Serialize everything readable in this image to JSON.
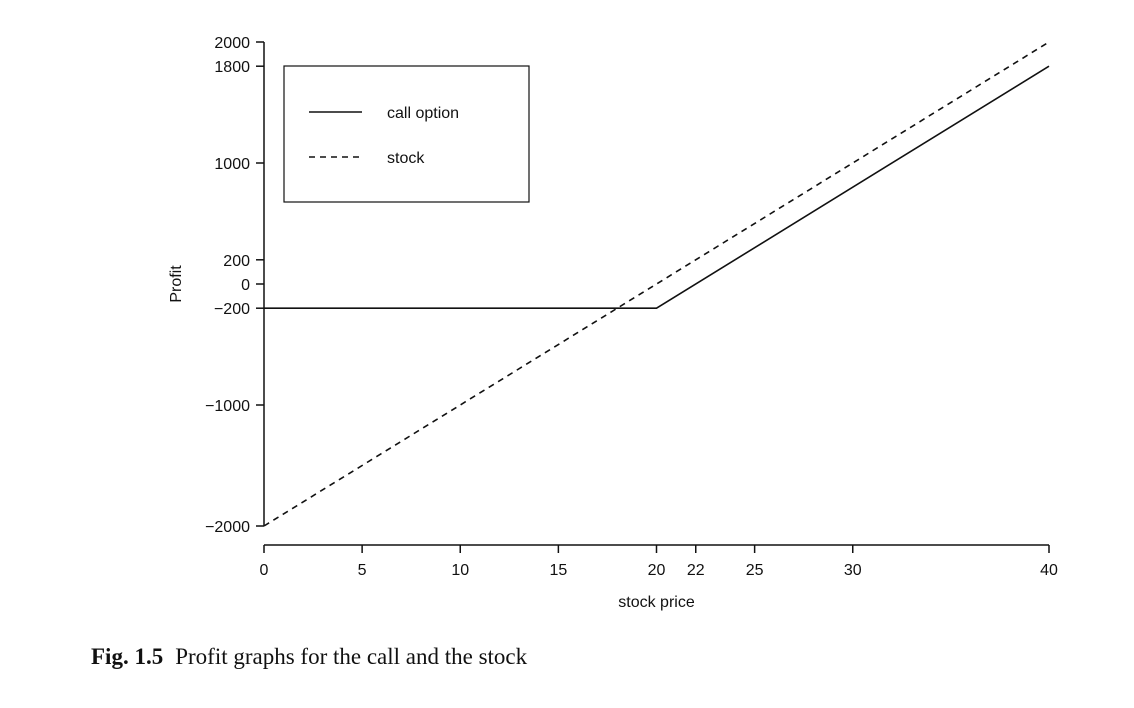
{
  "chart_data": {
    "type": "line",
    "xlabel": "stock price",
    "ylabel": "Profit",
    "xlim": [
      0,
      40
    ],
    "ylim": [
      -2000,
      2000
    ],
    "xticks": [
      0,
      5,
      10,
      15,
      20,
      22,
      25,
      30,
      40
    ],
    "xtick_labels": [
      "0",
      "5",
      "10",
      "15",
      "20",
      "22",
      "25",
      "30",
      "40"
    ],
    "yticks": [
      2000,
      1800,
      1000,
      200,
      0,
      -200,
      -1000,
      -2000
    ],
    "ytick_labels": [
      "2000",
      "1800",
      "1000",
      "200",
      "0",
      "−200",
      "−1000",
      "−2000"
    ],
    "grid": false,
    "legend_position": "top-left",
    "series": [
      {
        "name": "call option",
        "style": "solid",
        "color": "#111111",
        "x": [
          0,
          20,
          40
        ],
        "y": [
          -200,
          -200,
          1800
        ]
      },
      {
        "name": "stock",
        "style": "dashed",
        "color": "#111111",
        "x": [
          0,
          40
        ],
        "y": [
          -2000,
          2000
        ]
      }
    ]
  },
  "caption": {
    "label": "Fig. 1.5",
    "text": "Profit graphs for the call and the stock"
  }
}
